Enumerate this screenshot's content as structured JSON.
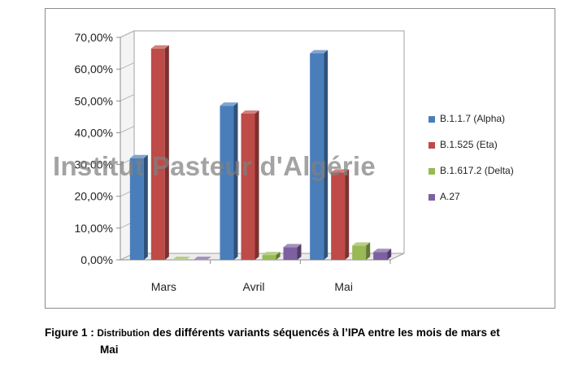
{
  "chart_data": {
    "type": "bar",
    "categories": [
      "Mars",
      "Avril",
      "Mai"
    ],
    "series": [
      {
        "name": "B.1.1.7 (Alpha)",
        "color": "#4a7ebb",
        "values": [
          32.0,
          48.5,
          65.0
        ]
      },
      {
        "name": "B.1.525 (Eta)",
        "color": "#be4b48",
        "values": [
          66.5,
          46.0,
          27.5
        ]
      },
      {
        "name": "B.1.617.2 (Delta)",
        "color": "#98b954",
        "values": [
          0.0,
          1.5,
          4.5
        ]
      },
      {
        "name": "A.27",
        "color": "#7d60a0",
        "values": [
          0.0,
          4.0,
          2.5
        ]
      }
    ],
    "ylim": [
      0,
      70
    ],
    "yticks": [
      "0,00%",
      "10,00%",
      "20,00%",
      "30,00%",
      "40,00%",
      "50,00%",
      "60,00%",
      "70,00%"
    ],
    "legend_position": "right",
    "grid": false,
    "style": "3d-clustered-column"
  },
  "watermark": "Institut Pasteur d'Algérie",
  "caption": {
    "prefix": "Figure 1 : ",
    "small": "Distribution",
    "line1_rest": " des différents variants séquencés à l’IPA entre les mois de mars et",
    "line2": "Mai"
  }
}
